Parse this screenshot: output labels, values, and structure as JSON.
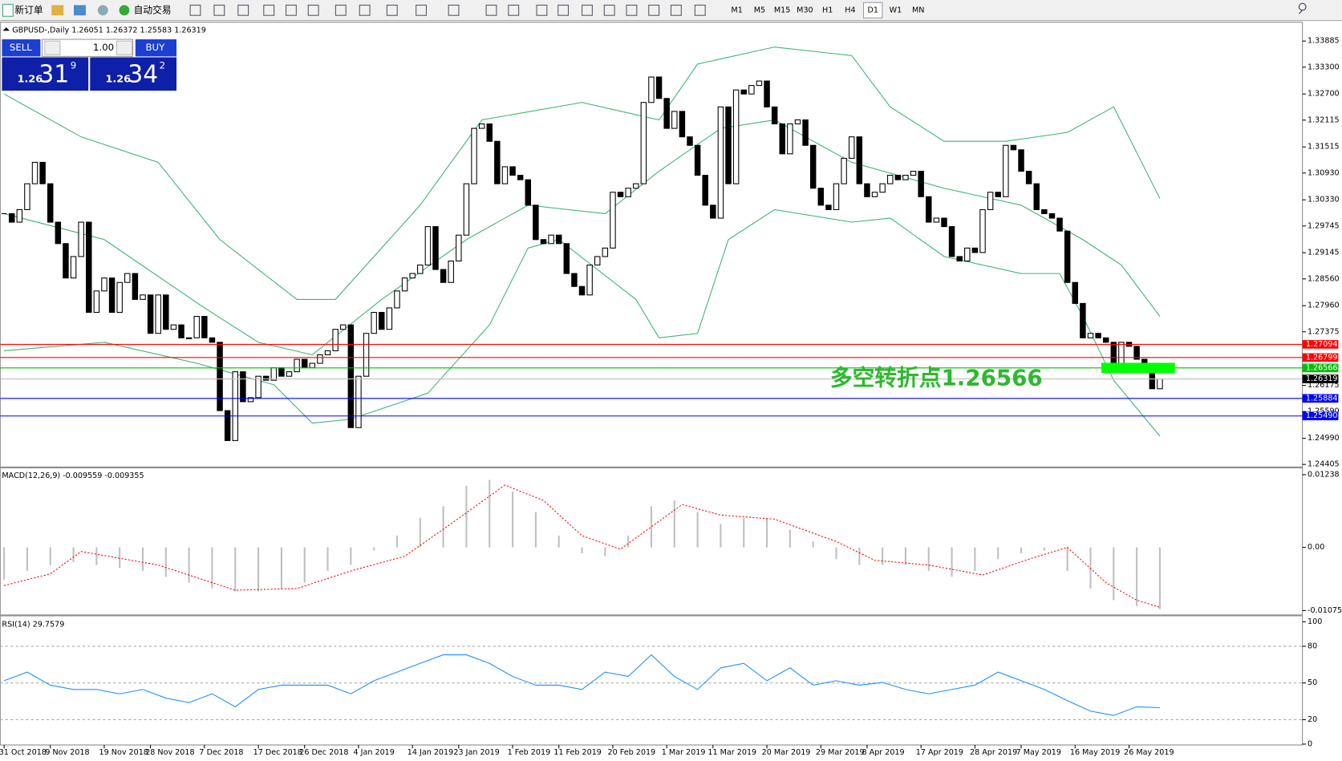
{
  "toolbar": {
    "new_order": "新订单",
    "auto_trade": "自动交易",
    "timeframes": [
      "M1",
      "M5",
      "M15",
      "M30",
      "H1",
      "H4",
      "D1",
      "W1",
      "MN"
    ],
    "active": "D1"
  },
  "trade_panel": {
    "sell": "SELL",
    "buy": "BUY",
    "lots": "1.00",
    "bid": {
      "big": "1.26",
      "pips": "31",
      "frac": "9"
    },
    "ask": {
      "big": "1.26",
      "pips": "34",
      "frac": "2"
    }
  },
  "chart_data": [
    {
      "type": "candlestick",
      "title": "GBPUSD-,Daily",
      "header_values": [
        1.26051,
        1.26372,
        1.25583,
        1.26319
      ],
      "xlim": [
        -0.5,
        168.5
      ],
      "ylim": [
        1.24367,
        1.34268
      ],
      "yticks": [
        {
          "value": 1.33885,
          "label": "1.33885"
        },
        {
          "value": 1.333,
          "label": "1.33300"
        },
        {
          "value": 1.327,
          "label": "1.32700"
        },
        {
          "value": 1.32115,
          "label": "1.32115"
        },
        {
          "value": 1.31515,
          "label": "1.31515"
        },
        {
          "value": 1.3093,
          "label": "1.30930"
        },
        {
          "value": 1.3033,
          "label": "1.30330"
        },
        {
          "value": 1.29745,
          "label": "1.29745"
        },
        {
          "value": 1.29145,
          "label": "1.29145"
        },
        {
          "value": 1.2856,
          "label": "1.28560"
        },
        {
          "value": 1.2796,
          "label": "1.27960"
        },
        {
          "value": 1.27375,
          "label": "1.27375"
        },
        {
          "value": 1.26175,
          "label": "1.26175"
        },
        {
          "value": 1.2559,
          "label": "1.25590"
        },
        {
          "value": 1.2499,
          "label": "1.24990"
        },
        {
          "value": 1.24405,
          "label": "1.24405"
        }
      ],
      "xticks": [
        {
          "value": 0,
          "label": "31 Oct 2018"
        },
        {
          "value": 6,
          "label": "9 Nov 2018"
        },
        {
          "value": 13,
          "label": "19 Nov 2018"
        },
        {
          "value": 19,
          "label": "28 Nov 2018"
        },
        {
          "value": 26,
          "label": "7 Dec 2018"
        },
        {
          "value": 33,
          "label": "17 Dec 2018"
        },
        {
          "value": 39,
          "label": "26 Dec 2018"
        },
        {
          "value": 46,
          "label": "4 Jan 2019"
        },
        {
          "value": 53,
          "label": "14 Jan 2019"
        },
        {
          "value": 59,
          "label": "23 Jan 2019"
        },
        {
          "value": 66,
          "label": "1 Feb 2019"
        },
        {
          "value": 72,
          "label": "11 Feb 2019"
        },
        {
          "value": 79,
          "label": "20 Feb 2019"
        },
        {
          "value": 86,
          "label": "1 Mar 2019"
        },
        {
          "value": 92,
          "label": "11 Mar 2019"
        },
        {
          "value": 99,
          "label": "20 Mar 2019"
        },
        {
          "value": 106,
          "label": "29 Mar 2019"
        },
        {
          "value": 112,
          "label": "8 Apr 2019"
        },
        {
          "value": 119,
          "label": "17 Apr 2019"
        },
        {
          "value": 126,
          "label": "28 Apr 2019"
        },
        {
          "value": 132,
          "label": "7 May 2019"
        },
        {
          "value": 139,
          "label": "16 May 2019"
        },
        {
          "value": 146,
          "label": "26 May 2019"
        }
      ],
      "values": [
        1.3002,
        1.2983,
        1.3011,
        1.3069,
        1.3117,
        1.3069,
        1.2983,
        1.2935,
        1.2858,
        1.2906,
        1.2983,
        1.2781,
        1.2829,
        1.2858,
        1.2781,
        1.2848,
        1.2868,
        1.281,
        1.282,
        1.2734,
        1.282,
        1.2743,
        1.2753,
        1.2724,
        1.2724,
        1.2772,
        1.2724,
        1.2714,
        1.2561,
        1.2494,
        1.2648,
        1.2581,
        1.259,
        1.2638,
        1.2629,
        1.2657,
        1.2638,
        1.2648,
        1.2676,
        1.2657,
        1.2667,
        1.2686,
        1.2695,
        1.2743,
        1.2753,
        1.2523,
        1.2638,
        1.2734,
        1.2781,
        1.2743,
        1.2791,
        1.2829,
        1.2858,
        1.2868,
        1.2887,
        1.2973,
        1.2877,
        1.2848,
        1.2896,
        1.2954,
        1.3069,
        1.3193,
        1.3203,
        1.3164,
        1.3069,
        1.3107,
        1.3088,
        1.3078,
        1.3021,
        1.2944,
        1.2935,
        1.2954,
        1.2935,
        1.2868,
        1.2839,
        1.282,
        1.2887,
        1.2906,
        1.2925,
        1.305,
        1.304,
        1.3059,
        1.3069,
        1.3251,
        1.3308,
        1.326,
        1.3193,
        1.3231,
        1.3174,
        1.3155,
        1.3088,
        1.3021,
        1.2992,
        1.3241,
        1.3069,
        1.3279,
        1.327,
        1.3289,
        1.3299,
        1.3241,
        1.3203,
        1.3136,
        1.3203,
        1.3212,
        1.3155,
        1.3059,
        1.3021,
        1.3011,
        1.3069,
        1.3126,
        1.3174,
        1.3069,
        1.304,
        1.305,
        1.3069,
        1.3088,
        1.3078,
        1.3088,
        1.3097,
        1.304,
        1.2983,
        1.2992,
        1.2973,
        1.2906,
        1.2896,
        1.2925,
        1.2915,
        1.3011,
        1.305,
        1.304,
        1.3155,
        1.3145,
        1.3097,
        1.3069,
        1.3011,
        1.3002,
        1.2992,
        1.2963,
        1.2848,
        1.2801,
        1.2724,
        1.2734,
        1.2724,
        1.2714,
        1.2657,
        1.2714,
        1.2705,
        1.2676,
        1.2667,
        1.261,
        1.26319
      ],
      "bands": [
        {
          "color": "#3cb371",
          "x": [
            0,
            10,
            20,
            28,
            38,
            43,
            54,
            62,
            75,
            85,
            90,
            100,
            110,
            115,
            122,
            130,
            138,
            144,
            150
          ],
          "values": [
            1.327,
            1.3174,
            1.3117,
            1.2944,
            1.281,
            1.281,
            1.3021,
            1.3212,
            1.3251,
            1.3212,
            1.3337,
            1.3375,
            1.3356,
            1.3241,
            1.3164,
            1.3164,
            1.3184,
            1.3241,
            1.3036
          ]
        },
        {
          "color": "#3cb371",
          "x": [
            0,
            13,
            26,
            33,
            40,
            49,
            60,
            68,
            78,
            85,
            93,
            100,
            110,
            122,
            132,
            140,
            145,
            150
          ],
          "values": [
            1.3002,
            1.2944,
            1.2791,
            1.2714,
            1.2686,
            1.281,
            1.2944,
            1.3021,
            1.3002,
            1.3097,
            1.3193,
            1.3212,
            1.3117,
            1.3059,
            1.3021,
            1.2944,
            1.2887,
            1.2772
          ]
        },
        {
          "color": "#3cb371",
          "x": [
            0,
            13,
            25,
            35,
            40,
            45,
            55,
            63,
            68,
            72,
            82,
            85,
            90,
            94,
            100,
            110,
            115,
            122,
            132,
            137,
            140,
            144,
            150
          ],
          "values": [
            1.2695,
            1.2714,
            1.2667,
            1.2619,
            1.2533,
            1.2542,
            1.26,
            1.2753,
            1.2925,
            1.2944,
            1.281,
            1.2724,
            1.2734,
            1.2944,
            1.3011,
            1.2983,
            1.2992,
            1.2906,
            1.2868,
            1.2868,
            1.2772,
            1.2629,
            1.2504
          ]
        }
      ],
      "levels": [
        {
          "value": 1.27094,
          "label": "1.27094",
          "color": "#ff0000"
        },
        {
          "value": 1.26799,
          "label": "1.26799",
          "color": "#ff0000"
        },
        {
          "value": 1.26566,
          "label": "1.26566",
          "color": "#00c000"
        },
        {
          "value": 1.26319,
          "label": "1.26319",
          "color": "#000000"
        },
        {
          "value": 1.25884,
          "label": "1.25884",
          "color": "#0000ff"
        },
        {
          "value": 1.2549,
          "label": "1.25490",
          "color": "#0000ff"
        }
      ],
      "annotation": "多空转折点1.26566"
    },
    {
      "type": "macd",
      "title": "MACD(12,26,9)",
      "header_values": [
        -0.009559,
        -0.009355
      ],
      "xlim": [
        -0.5,
        168.5
      ],
      "ylim": [
        -0.01136,
        0.0134
      ],
      "yticks": [
        0.01238,
        {
          "value": 0,
          "label": "0.00"
        },
        -0.010751
      ],
      "color": "#c0c0c0",
      "x": [
        0,
        3,
        6,
        9,
        12,
        15,
        18,
        21,
        24,
        27,
        30,
        33,
        36,
        39,
        42,
        45,
        48,
        51,
        54,
        57,
        60,
        63,
        66,
        69,
        72,
        75,
        78,
        81,
        84,
        87,
        90,
        93,
        96,
        99,
        102,
        105,
        108,
        111,
        114,
        117,
        120,
        123,
        126,
        129,
        132,
        135,
        138,
        141,
        144,
        147,
        150
      ],
      "values": [
        -0.0055,
        -0.004,
        -0.003,
        -0.0025,
        -0.003,
        -0.0035,
        -0.004,
        -0.005,
        -0.006,
        -0.007,
        -0.0075,
        -0.0075,
        -0.007,
        -0.006,
        -0.004,
        -0.003,
        -0.0005,
        0.002,
        0.005,
        0.007,
        0.0105,
        0.0115,
        0.0095,
        0.006,
        0.002,
        -0.001,
        -0.0015,
        0.002,
        0.007,
        0.008,
        0.006,
        0.004,
        0.005,
        0.005,
        0.003,
        0.001,
        -0.002,
        -0.003,
        -0.003,
        -0.003,
        -0.004,
        -0.005,
        -0.004,
        -0.002,
        -0.001,
        -0.0005,
        -0.004,
        -0.007,
        -0.009,
        -0.01,
        -0.0105
      ],
      "signal": {
        "color": "#ff0000",
        "x": [
          0,
          6,
          10,
          20,
          30,
          38,
          45,
          52,
          58,
          65,
          70,
          75,
          80,
          88,
          93,
          100,
          108,
          113,
          120,
          127,
          133,
          138,
          143,
          147,
          150
        ],
        "values": [
          -0.0065,
          -0.0045,
          -0.0007,
          -0.003,
          -0.0073,
          -0.007,
          -0.004,
          -0.0015,
          0.004,
          0.0106,
          0.008,
          0.002,
          -0.0003,
          0.0073,
          0.0055,
          0.0048,
          0.001,
          -0.0022,
          -0.003,
          -0.0047,
          -0.002,
          0,
          -0.006,
          -0.009,
          -0.0102
        ]
      }
    },
    {
      "type": "line",
      "title": "RSI(14)",
      "header_values": [
        29.7579
      ],
      "xlim": [
        -0.5,
        168.5
      ],
      "ylim": [
        0,
        103.5
      ],
      "yticks": [
        100,
        80,
        50,
        20,
        0
      ],
      "levels": [
        80,
        50,
        20
      ],
      "color": "#1e90ff",
      "x": [
        0,
        3,
        6,
        9,
        12,
        15,
        18,
        21,
        24,
        27,
        30,
        33,
        36,
        39,
        42,
        45,
        48,
        51,
        54,
        57,
        60,
        63,
        66,
        69,
        72,
        75,
        78,
        81,
        84,
        87,
        90,
        93,
        96,
        99,
        102,
        105,
        108,
        111,
        114,
        117,
        120,
        123,
        126,
        129,
        132,
        135,
        138,
        141,
        144,
        147,
        150
      ],
      "values": [
        51.8,
        58.9,
        48.2,
        44.7,
        44.7,
        41.1,
        44.7,
        37.6,
        34,
        41.1,
        30.5,
        44.7,
        48.2,
        48.2,
        48.2,
        41.1,
        51.8,
        58.9,
        66,
        73,
        73,
        66,
        55.3,
        48.2,
        48.2,
        44.7,
        58.9,
        55.3,
        73,
        55.3,
        44.7,
        62.4,
        66,
        51.8,
        62.4,
        48.2,
        51.8,
        48.2,
        50.4,
        44.7,
        41.1,
        44.7,
        48.2,
        58.9,
        51.8,
        44.7,
        35.5,
        27,
        23.4,
        30.5,
        29.76
      ]
    }
  ]
}
